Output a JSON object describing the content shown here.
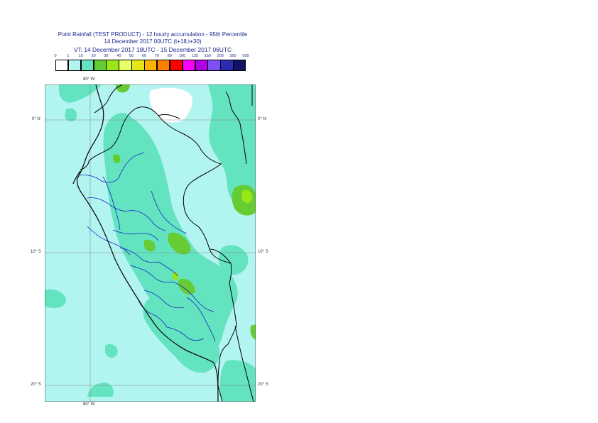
{
  "title": {
    "line1": "Point Rainfall (TEST PRODUCT) - 12 hourly accumulation - 95th Percentile",
    "line2": "14 December 2017 00UTC (t+18,t+30)",
    "line3": "VT: 14 December 2017 18UTC - 15 December 2017 06UTC"
  },
  "legend": {
    "ticks": [
      "0",
      "1",
      "10",
      "20",
      "30",
      "40",
      "50",
      "60",
      "70",
      "80",
      "100",
      "125",
      "150",
      "200",
      "300",
      "500"
    ],
    "colors": [
      "#ffffff",
      "#b2f5f0",
      "#63e3c0",
      "#66cc33",
      "#99e619",
      "#e5ff66",
      "#e5e619",
      "#ffb300",
      "#ff7f00",
      "#ff0000",
      "#ff00ff",
      "#b200e6",
      "#7d4ff5",
      "#2a2ab2",
      "#111166"
    ]
  },
  "axis_labels": {
    "lon_top": "80° W",
    "lon_bottom": "80° W",
    "lat_0_left": "0° N",
    "lat_0_right": "0° N",
    "lat_10_left": "10° S",
    "lat_10_right": "10° S",
    "lat_20_left": "20° S",
    "lat_20_right": "20° S"
  },
  "colors": {
    "ocean": "#b2f5f0",
    "land_light": "#b2f5f0",
    "land_medium": "#63e3c0",
    "land_heavy": "#66cc33",
    "land_heavy2": "#99e619",
    "border_country": "#000000",
    "border_region": "#1428c8",
    "grid": "#8a8a8a"
  }
}
